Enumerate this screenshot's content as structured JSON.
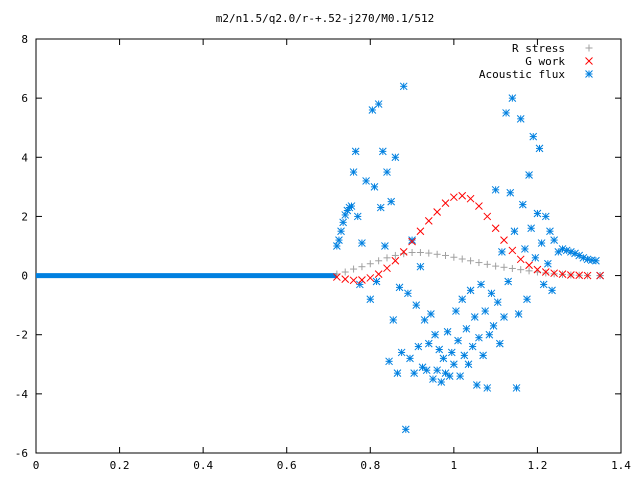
{
  "chart_data": {
    "type": "scatter",
    "title": "m2/n1.5/q2.0/r-+.52-j270/M0.1/512",
    "xlabel": "",
    "ylabel": "",
    "xlim": [
      0,
      1.4
    ],
    "ylim": [
      -6,
      8
    ],
    "xticks": [
      0,
      0.2,
      0.4,
      0.6,
      0.8,
      1,
      1.2,
      1.4
    ],
    "xtick_labels": [
      "0",
      "0.2",
      "0.4",
      "0.6",
      "0.8",
      "1",
      "1.2",
      "1.4"
    ],
    "yticks": [
      -6,
      -4,
      -2,
      0,
      2,
      4,
      6,
      8
    ],
    "ytick_labels": [
      "-6",
      "-4",
      "-2",
      "0",
      "2",
      "4",
      "6",
      "8"
    ],
    "grid": false,
    "legend_position": "top-right",
    "series": [
      {
        "name": "R stress",
        "marker": "plus",
        "color": "#a0a0a0",
        "points": [
          [
            0.72,
            0.05
          ],
          [
            0.74,
            0.12
          ],
          [
            0.76,
            0.22
          ],
          [
            0.78,
            0.3
          ],
          [
            0.8,
            0.4
          ],
          [
            0.82,
            0.5
          ],
          [
            0.84,
            0.6
          ],
          [
            0.86,
            0.68
          ],
          [
            0.88,
            0.74
          ],
          [
            0.9,
            0.78
          ],
          [
            0.92,
            0.78
          ],
          [
            0.94,
            0.76
          ],
          [
            0.96,
            0.72
          ],
          [
            0.98,
            0.68
          ],
          [
            1.0,
            0.62
          ],
          [
            1.02,
            0.56
          ],
          [
            1.04,
            0.5
          ],
          [
            1.06,
            0.44
          ],
          [
            1.08,
            0.38
          ],
          [
            1.1,
            0.32
          ],
          [
            1.12,
            0.28
          ],
          [
            1.14,
            0.24
          ],
          [
            1.16,
            0.2
          ],
          [
            1.18,
            0.16
          ],
          [
            1.2,
            0.12
          ],
          [
            1.22,
            0.09
          ],
          [
            1.24,
            0.06
          ],
          [
            1.26,
            0.04
          ],
          [
            1.28,
            0.02
          ],
          [
            1.3,
            0.01
          ],
          [
            1.32,
            0.0
          ],
          [
            1.35,
            0.0
          ]
        ]
      },
      {
        "name": "G work",
        "marker": "cross",
        "color": "#ff0000",
        "points": [
          [
            0.72,
            -0.05
          ],
          [
            0.74,
            -0.12
          ],
          [
            0.76,
            -0.16
          ],
          [
            0.78,
            -0.15
          ],
          [
            0.8,
            -0.08
          ],
          [
            0.82,
            0.05
          ],
          [
            0.84,
            0.25
          ],
          [
            0.86,
            0.5
          ],
          [
            0.88,
            0.8
          ],
          [
            0.9,
            1.15
          ],
          [
            0.92,
            1.5
          ],
          [
            0.94,
            1.85
          ],
          [
            0.96,
            2.15
          ],
          [
            0.98,
            2.45
          ],
          [
            1.0,
            2.65
          ],
          [
            1.02,
            2.7
          ],
          [
            1.04,
            2.6
          ],
          [
            1.06,
            2.35
          ],
          [
            1.08,
            2.0
          ],
          [
            1.1,
            1.6
          ],
          [
            1.12,
            1.2
          ],
          [
            1.14,
            0.85
          ],
          [
            1.16,
            0.55
          ],
          [
            1.18,
            0.35
          ],
          [
            1.2,
            0.2
          ],
          [
            1.22,
            0.12
          ],
          [
            1.24,
            0.08
          ],
          [
            1.26,
            0.05
          ],
          [
            1.28,
            0.02
          ],
          [
            1.3,
            0.01
          ],
          [
            1.32,
            0.0
          ],
          [
            1.35,
            0.0
          ]
        ]
      },
      {
        "name": "Acoustic flux",
        "marker": "star",
        "color": "#0080e0",
        "points": [
          [
            0.72,
            1.0
          ],
          [
            0.725,
            1.2
          ],
          [
            0.73,
            1.5
          ],
          [
            0.735,
            1.8
          ],
          [
            0.74,
            2.05
          ],
          [
            0.745,
            2.2
          ],
          [
            0.75,
            2.3
          ],
          [
            0.755,
            2.35
          ],
          [
            0.76,
            3.5
          ],
          [
            0.765,
            4.2
          ],
          [
            0.77,
            2.0
          ],
          [
            0.775,
            -0.3
          ],
          [
            0.78,
            1.1
          ],
          [
            0.79,
            3.2
          ],
          [
            0.8,
            -0.8
          ],
          [
            0.805,
            5.6
          ],
          [
            0.81,
            3.0
          ],
          [
            0.815,
            -0.2
          ],
          [
            0.82,
            5.8
          ],
          [
            0.825,
            2.3
          ],
          [
            0.83,
            4.2
          ],
          [
            0.835,
            1.0
          ],
          [
            0.84,
            3.5
          ],
          [
            0.845,
            -2.9
          ],
          [
            0.85,
            2.5
          ],
          [
            0.855,
            -1.5
          ],
          [
            0.86,
            4.0
          ],
          [
            0.865,
            -3.3
          ],
          [
            0.87,
            -0.4
          ],
          [
            0.875,
            -2.6
          ],
          [
            0.88,
            6.4
          ],
          [
            0.885,
            -5.2
          ],
          [
            0.89,
            -0.6
          ],
          [
            0.895,
            -2.8
          ],
          [
            0.9,
            1.2
          ],
          [
            0.905,
            -3.3
          ],
          [
            0.91,
            -1.0
          ],
          [
            0.915,
            -2.4
          ],
          [
            0.92,
            0.3
          ],
          [
            0.925,
            -3.1
          ],
          [
            0.93,
            -1.5
          ],
          [
            0.935,
            -3.2
          ],
          [
            0.94,
            -2.3
          ],
          [
            0.945,
            -1.3
          ],
          [
            0.95,
            -3.5
          ],
          [
            0.955,
            -2.0
          ],
          [
            0.96,
            -3.2
          ],
          [
            0.965,
            -2.5
          ],
          [
            0.97,
            -3.6
          ],
          [
            0.975,
            -2.8
          ],
          [
            0.98,
            -3.3
          ],
          [
            0.985,
            -1.9
          ],
          [
            0.99,
            -3.4
          ],
          [
            0.995,
            -2.6
          ],
          [
            1.0,
            -3.0
          ],
          [
            1.005,
            -1.2
          ],
          [
            1.01,
            -2.2
          ],
          [
            1.015,
            -3.4
          ],
          [
            1.02,
            -0.8
          ],
          [
            1.025,
            -2.7
          ],
          [
            1.03,
            -1.8
          ],
          [
            1.035,
            -3.0
          ],
          [
            1.04,
            -0.5
          ],
          [
            1.045,
            -2.4
          ],
          [
            1.05,
            -1.4
          ],
          [
            1.055,
            -3.7
          ],
          [
            1.06,
            -2.1
          ],
          [
            1.065,
            -0.3
          ],
          [
            1.07,
            -2.7
          ],
          [
            1.075,
            -1.2
          ],
          [
            1.08,
            -3.8
          ],
          [
            1.085,
            -2.0
          ],
          [
            1.09,
            -0.6
          ],
          [
            1.095,
            -1.7
          ],
          [
            1.1,
            2.9
          ],
          [
            1.105,
            -0.9
          ],
          [
            1.11,
            -2.3
          ],
          [
            1.115,
            0.8
          ],
          [
            1.12,
            -1.4
          ],
          [
            1.125,
            5.5
          ],
          [
            1.13,
            -0.2
          ],
          [
            1.135,
            2.8
          ],
          [
            1.14,
            6.0
          ],
          [
            1.145,
            1.5
          ],
          [
            1.15,
            -3.8
          ],
          [
            1.155,
            -1.3
          ],
          [
            1.16,
            5.3
          ],
          [
            1.165,
            2.4
          ],
          [
            1.17,
            0.9
          ],
          [
            1.175,
            -0.8
          ],
          [
            1.18,
            3.4
          ],
          [
            1.185,
            1.6
          ],
          [
            1.19,
            4.7
          ],
          [
            1.195,
            0.6
          ],
          [
            1.2,
            2.1
          ],
          [
            1.205,
            4.3
          ],
          [
            1.21,
            1.1
          ],
          [
            1.215,
            -0.3
          ],
          [
            1.22,
            2.0
          ],
          [
            1.225,
            0.4
          ],
          [
            1.23,
            1.5
          ],
          [
            1.235,
            -0.5
          ],
          [
            1.24,
            1.2
          ],
          [
            1.25,
            0.8
          ],
          [
            1.26,
            0.9
          ],
          [
            1.27,
            0.85
          ],
          [
            1.28,
            0.8
          ],
          [
            1.29,
            0.75
          ],
          [
            1.3,
            0.68
          ],
          [
            1.31,
            0.6
          ],
          [
            1.32,
            0.55
          ],
          [
            1.33,
            0.52
          ],
          [
            1.34,
            0.5
          ],
          [
            1.35,
            0.0
          ]
        ]
      }
    ],
    "baseline_segment": {
      "x_from": 0.0,
      "x_to": 0.72,
      "y": 0,
      "color": "#0080e0"
    }
  }
}
